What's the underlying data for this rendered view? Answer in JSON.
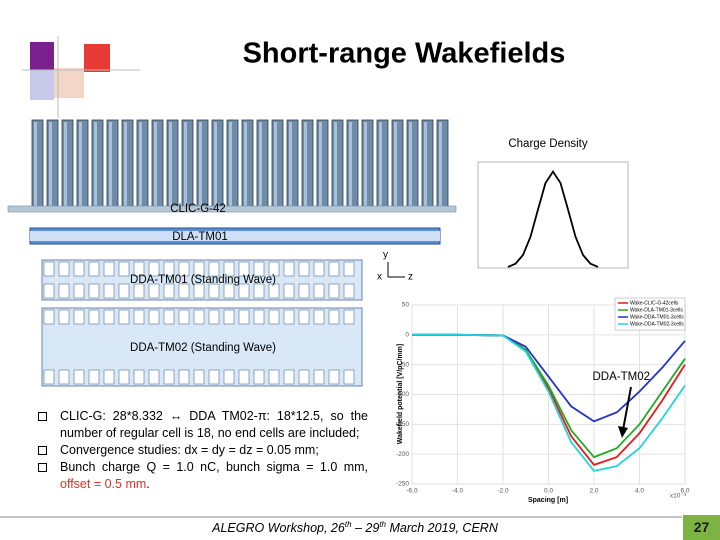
{
  "slide": {
    "title": "Short-range Wakefields",
    "structures": [
      "CLIC-G-42",
      "DLA-TM01",
      "DDA-TM01 (Standing Wave)",
      "DDA-TM02 (Standing Wave)"
    ],
    "axes_symbol": {
      "y": "y",
      "x": "x",
      "z": "z"
    },
    "annotation": "DDA-TM02",
    "bullets": [
      {
        "parts": [
          "CLIC-G: 28*8.332 ↔ DDA TM02-π: 18*12.5, so the number of regular cell is 18, no end cells are included;"
        ]
      },
      {
        "parts": [
          "Convergence studies: dx = dy = dz = 0.05 mm;"
        ]
      },
      {
        "parts": [
          "Bunch charge Q = 1.0 nC, bunch sigma = 1.0 mm, ",
          "offset = 0.5 mm",
          "."
        ]
      }
    ],
    "footer": {
      "parts": [
        "ALEGRO Workshop, 26",
        "th",
        " – 29",
        "th",
        " March 2019, CERN"
      ],
      "page": "27"
    }
  },
  "chart_data": [
    {
      "type": "line",
      "title": "Charge Density",
      "x": [
        -3,
        -2.5,
        -2,
        -1.5,
        -1,
        -0.5,
        0,
        0.5,
        1,
        1.5,
        2,
        2.5,
        3
      ],
      "series": [
        {
          "name": "Charge Density",
          "color": "#000000",
          "values": [
            0.011,
            0.044,
            0.135,
            0.325,
            0.607,
            0.882,
            1,
            0.882,
            0.607,
            0.325,
            0.135,
            0.044,
            0.011
          ]
        }
      ],
      "xlim": [
        -5,
        5
      ],
      "ylim": [
        0,
        1.1
      ]
    },
    {
      "type": "line",
      "x_label": "Spacing [m]",
      "y_label": "Wakefield potential [V/pC/mm]",
      "x_multiplier": "x10⁻³",
      "x": [
        -6,
        -4,
        -2,
        -1,
        0,
        1,
        2,
        3,
        4,
        5,
        6
      ],
      "series": [
        {
          "name": "Wake-CLIC-G-42cells",
          "color": "#e41a1c",
          "values": [
            0,
            0,
            -1,
            -25,
            -90,
            -170,
            -218,
            -205,
            -165,
            -110,
            -50
          ]
        },
        {
          "name": "Wake-DLA-TM01-3cells",
          "color": "#22aa22",
          "values": [
            0,
            0,
            -1,
            -25,
            -85,
            -160,
            -205,
            -190,
            -150,
            -95,
            -40
          ]
        },
        {
          "name": "Wake-DDA-TM01-3cells",
          "color": "#2233cc",
          "values": [
            0,
            0,
            -1,
            -20,
            -70,
            -120,
            -145,
            -130,
            -95,
            -55,
            -10
          ]
        },
        {
          "name": "Wake-DDA-TM02-3cells",
          "color": "#22d3e0",
          "values": [
            0,
            0,
            -1,
            -28,
            -95,
            -180,
            -228,
            -220,
            -190,
            -140,
            -85
          ]
        }
      ],
      "xlim": [
        -6,
        6
      ],
      "ylim": [
        -250,
        50
      ],
      "xticks": [
        {
          "value": -6,
          "label": "-6.0"
        },
        {
          "value": -4,
          "label": "-4.0"
        },
        {
          "value": -2,
          "label": "-2.0"
        },
        {
          "value": 0,
          "label": "0.0"
        },
        {
          "value": 2,
          "label": "2.0"
        },
        {
          "value": 4,
          "label": "4.0"
        },
        {
          "value": 6,
          "label": "6.0"
        }
      ],
      "yticks": [
        50,
        0,
        -50,
        -100,
        -150,
        -200,
        -250
      ],
      "grid": true,
      "legend": "top-right"
    }
  ]
}
